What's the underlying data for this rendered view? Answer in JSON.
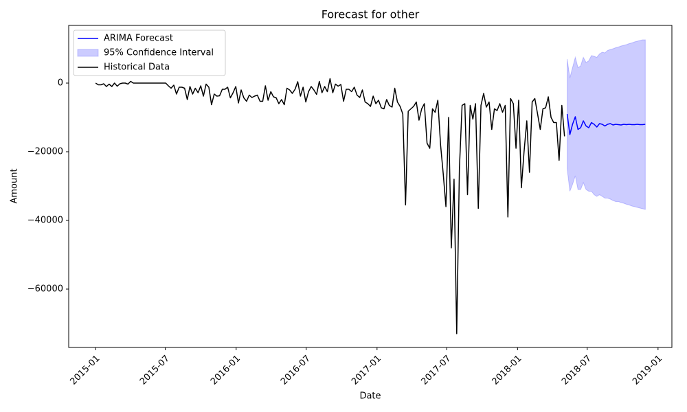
{
  "chart_data": {
    "type": "line",
    "title": "Forecast for other",
    "x_label": "Date",
    "y_label": "Amount",
    "xlim": [
      16366,
      17933
    ],
    "ylim": [
      -77000,
      16800
    ],
    "xticks": [
      {
        "value": 16436,
        "label": "2015-01"
      },
      {
        "value": 16617,
        "label": "2015-07"
      },
      {
        "value": 16801,
        "label": "2016-01"
      },
      {
        "value": 16983,
        "label": "2016-07"
      },
      {
        "value": 17167,
        "label": "2017-01"
      },
      {
        "value": 17348,
        "label": "2017-07"
      },
      {
        "value": 17532,
        "label": "2018-01"
      },
      {
        "value": 17713,
        "label": "2018-07"
      },
      {
        "value": 17897,
        "label": "2019-01"
      }
    ],
    "yticks": [
      {
        "value": -60000,
        "label": "−60000"
      },
      {
        "value": -40000,
        "label": "−40000"
      },
      {
        "value": -20000,
        "label": "−20000"
      },
      0
    ],
    "legend": "upper-left",
    "series": [
      {
        "name": "ARIMA Forecast",
        "color": "#0000ff",
        "kind": "line",
        "x": [
          17661,
          17668,
          17675,
          17682,
          17689,
          17696,
          17703,
          17710,
          17717,
          17724,
          17731,
          17738,
          17745,
          17752,
          17759,
          17766,
          17773,
          17780,
          17787,
          17794,
          17801,
          17808,
          17815,
          17822,
          17829,
          17836,
          17843,
          17850,
          17857,
          17864
        ],
        "values": [
          -9000,
          -15000,
          -12000,
          -9800,
          -13500,
          -13000,
          -11000,
          -12500,
          -13000,
          -11500,
          -12000,
          -12800,
          -11800,
          -12000,
          -12500,
          -12000,
          -11800,
          -12200,
          -12000,
          -12100,
          -12200,
          -12000,
          -12100,
          -12000,
          -12100,
          -12100,
          -12000,
          -12100,
          -12100,
          -12000
        ]
      },
      {
        "name": "95% Confidence Interval",
        "color": "#0000ff",
        "kind": "band",
        "x": [
          17661,
          17668,
          17675,
          17682,
          17689,
          17696,
          17703,
          17710,
          17717,
          17724,
          17731,
          17738,
          17745,
          17752,
          17759,
          17766,
          17773,
          17780,
          17787,
          17794,
          17801,
          17808,
          17815,
          17822,
          17829,
          17836,
          17843,
          17850,
          17857,
          17864
        ],
        "lower": [
          -25000,
          -31500,
          -29500,
          -27000,
          -31000,
          -31000,
          -29000,
          -31000,
          -31500,
          -31500,
          -32500,
          -33000,
          -32500,
          -33000,
          -33500,
          -33500,
          -33800,
          -34200,
          -34500,
          -34500,
          -34800,
          -35000,
          -35300,
          -35500,
          -35800,
          -36000,
          -36200,
          -36400,
          -36600,
          -36800
        ],
        "upper": [
          7000,
          1500,
          4500,
          7500,
          4500,
          5000,
          7500,
          6000,
          6500,
          8000,
          7800,
          7500,
          8500,
          9000,
          8800,
          9500,
          9800,
          10000,
          10300,
          10500,
          10800,
          11000,
          11200,
          11500,
          11700,
          12000,
          12200,
          12400,
          12600,
          12600
        ]
      },
      {
        "name": "Historical Data",
        "color": "#000000",
        "kind": "line",
        "x": [
          16436,
          16443,
          16450,
          16457,
          16464,
          16471,
          16478,
          16485,
          16492,
          16499,
          16506,
          16513,
          16520,
          16527,
          16534,
          16541,
          16548,
          16555,
          16562,
          16569,
          16576,
          16583,
          16590,
          16597,
          16604,
          16611,
          16618,
          16625,
          16632,
          16639,
          16646,
          16653,
          16660,
          16667,
          16674,
          16681,
          16688,
          16695,
          16702,
          16709,
          16716,
          16723,
          16730,
          16737,
          16744,
          16751,
          16758,
          16765,
          16772,
          16779,
          16786,
          16793,
          16800,
          16807,
          16814,
          16821,
          16828,
          16835,
          16842,
          16849,
          16856,
          16863,
          16870,
          16877,
          16884,
          16891,
          16898,
          16905,
          16912,
          16919,
          16926,
          16933,
          16940,
          16947,
          16954,
          16961,
          16968,
          16975,
          16982,
          16989,
          16996,
          17003,
          17010,
          17017,
          17024,
          17031,
          17038,
          17045,
          17052,
          17059,
          17066,
          17073,
          17080,
          17087,
          17094,
          17101,
          17108,
          17115,
          17122,
          17129,
          17136,
          17143,
          17150,
          17157,
          17164,
          17171,
          17178,
          17185,
          17192,
          17199,
          17206,
          17213,
          17220,
          17227,
          17234,
          17241,
          17248,
          17255,
          17262,
          17269,
          17276,
          17283,
          17290,
          17297,
          17304,
          17311,
          17318,
          17325,
          17332,
          17339,
          17346,
          17353,
          17360,
          17367,
          17374,
          17381,
          17388,
          17395,
          17402,
          17409,
          17416,
          17423,
          17430,
          17437,
          17444,
          17451,
          17458,
          17465,
          17472,
          17479,
          17486,
          17493,
          17500,
          17507,
          17514,
          17521,
          17528,
          17535,
          17542,
          17549,
          17556,
          17563,
          17570,
          17577,
          17584,
          17591,
          17598,
          17605,
          17612,
          17619,
          17626,
          17633,
          17640,
          17647,
          17654
        ],
        "values": [
          0,
          -500,
          -500,
          -200,
          -1000,
          -300,
          -1000,
          0,
          -900,
          -200,
          0,
          0,
          -300,
          500,
          0,
          0,
          0,
          0,
          0,
          0,
          0,
          0,
          0,
          0,
          0,
          0,
          0,
          -800,
          -1500,
          -600,
          -3200,
          -1200,
          -1200,
          -1500,
          -4800,
          -1000,
          -3200,
          -1500,
          -2800,
          -800,
          -3800,
          -300,
          -1200,
          -6300,
          -3200,
          -3800,
          -3700,
          -1800,
          -1800,
          -1200,
          -4300,
          -2800,
          -1000,
          -5800,
          -2000,
          -4300,
          -5300,
          -3500,
          -4200,
          -3800,
          -3500,
          -5300,
          -5300,
          -800,
          -5000,
          -2500,
          -4000,
          -4300,
          -6000,
          -4800,
          -6300,
          -1500,
          -2000,
          -3000,
          -1800,
          400,
          -3800,
          -1200,
          -5500,
          -2500,
          -1000,
          -2000,
          -3300,
          500,
          -2800,
          -1000,
          -2500,
          1300,
          -2800,
          -300,
          -900,
          -400,
          -5300,
          -1800,
          -1800,
          -2500,
          -1200,
          -3500,
          -4200,
          -2000,
          -5500,
          -6000,
          -6800,
          -3800,
          -6000,
          -5000,
          -7200,
          -7500,
          -4800,
          -6500,
          -7000,
          -1500,
          -5500,
          -6800,
          -9000,
          -35500,
          -8200,
          -7500,
          -6800,
          -5500,
          -10800,
          -7500,
          -6000,
          -17500,
          -19000,
          -7500,
          -8500,
          -5000,
          -18000,
          -26500,
          -36000,
          -10000,
          -48000,
          -28000,
          -73000,
          -25000,
          -6500,
          -6000,
          -32500,
          -6500,
          -10500,
          -6000,
          -36500,
          -6500,
          -3000,
          -7000,
          -5500,
          -13500,
          -7500,
          -8000,
          -6000,
          -8500,
          -6500,
          -39000,
          -4500,
          -6000,
          -19000,
          -5000,
          -30500,
          -20000,
          -11000,
          -26000,
          -5500,
          -4500,
          -9000,
          -13500,
          -7500,
          -7200,
          -4000,
          -10000,
          -11500,
          -11500,
          -22500,
          -6500,
          -15500
        ]
      }
    ]
  }
}
